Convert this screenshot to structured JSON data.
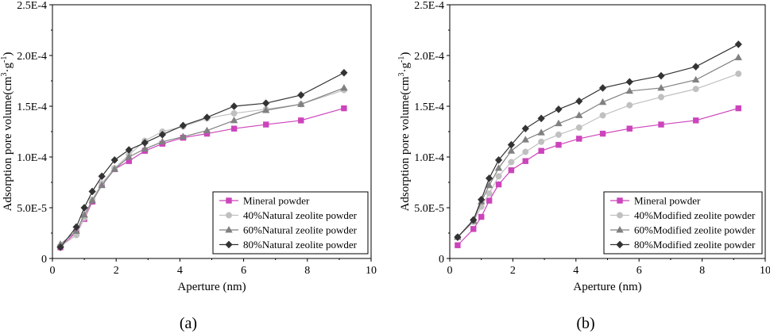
{
  "colors": {
    "mineral": "#cc44bb",
    "zeolite40": "#c0c0c0",
    "zeolite60": "#808080",
    "zeolite80": "#333333",
    "axis": "#000000"
  },
  "chart_data": [
    {
      "type": "line",
      "panel_label": "(a)",
      "xlabel": "Aperture (nm)",
      "ylabel_main": "Adsorption pore volume(cm",
      "ylabel_sup1": "3",
      "ylabel_mid": "·g",
      "ylabel_sup2": "-1",
      "ylabel_end": ")",
      "xlim": [
        0,
        10
      ],
      "ylim": [
        0,
        0.00025
      ],
      "xticks": [
        0,
        2,
        4,
        6,
        8,
        10
      ],
      "xtick_labels": [
        "0",
        "2",
        "4",
        "6",
        "8",
        "10"
      ],
      "yticks": [
        0,
        5e-05,
        0.0001,
        0.00015,
        0.0002,
        0.00025
      ],
      "ytick_labels": [
        "0",
        "5.0E-5",
        "1.0E-4",
        "1.5E-4",
        "2.0E-4",
        "2.5E-4"
      ],
      "legend_position": "bottom-right",
      "series": [
        {
          "name": "Mineral powder",
          "marker": "square",
          "color_key": "mineral",
          "x": [
            0.25,
            0.75,
            1.0,
            1.25,
            1.55,
            1.95,
            2.4,
            2.9,
            3.45,
            4.1,
            4.85,
            5.7,
            6.7,
            7.8,
            9.15
          ],
          "y": [
            1.1e-05,
            2.6e-05,
            3.9e-05,
            5.6e-05,
            7.3e-05,
            8.8e-05,
            9.6e-05,
            0.000106,
            0.000113,
            0.000119,
            0.000123,
            0.000128,
            0.000132,
            0.000136,
            0.000148
          ]
        },
        {
          "name": "40%Natural zeolite powder",
          "marker": "circle",
          "color_key": "zeolite40",
          "x": [
            0.25,
            0.75,
            1.0,
            1.25,
            1.55,
            1.95,
            2.4,
            2.9,
            3.45,
            4.1,
            4.85,
            5.7,
            6.7,
            7.8,
            9.15
          ],
          "y": [
            1.2e-05,
            2.3e-05,
            4e-05,
            5.8e-05,
            7.4e-05,
            8.9e-05,
            0.000102,
            0.000116,
            0.000125,
            0.00013,
            0.000138,
            0.000143,
            0.000147,
            0.000152,
            0.000166
          ]
        },
        {
          "name": "60%Natural zeolite powder",
          "marker": "triangle",
          "color_key": "zeolite60",
          "x": [
            0.25,
            0.75,
            1.0,
            1.25,
            1.55,
            1.95,
            2.4,
            2.9,
            3.45,
            4.1,
            4.85,
            5.7,
            6.7,
            7.8,
            9.15
          ],
          "y": [
            1.4e-05,
            2.7e-05,
            4.3e-05,
            5.7e-05,
            7.2e-05,
            8.8e-05,
            0.0001,
            0.000108,
            0.000115,
            0.00012,
            0.000126,
            0.000136,
            0.000146,
            0.000152,
            0.000168
          ]
        },
        {
          "name": "80%Natural zeolite powder",
          "marker": "diamond",
          "color_key": "zeolite80",
          "x": [
            0.25,
            0.75,
            1.0,
            1.25,
            1.55,
            1.95,
            2.4,
            2.9,
            3.45,
            4.1,
            4.85,
            5.7,
            6.7,
            7.8,
            9.15
          ],
          "y": [
            1.1e-05,
            3.1e-05,
            5e-05,
            6.6e-05,
            8.1e-05,
            9.7e-05,
            0.000107,
            0.000114,
            0.000122,
            0.000131,
            0.000139,
            0.00015,
            0.000153,
            0.000161,
            0.000183
          ]
        }
      ]
    },
    {
      "type": "line",
      "panel_label": "(b)",
      "xlabel": "Aperture (nm)",
      "ylabel_main": "Adsorption pore volume(cm",
      "ylabel_sup1": "3",
      "ylabel_mid": "·g",
      "ylabel_sup2": "-1",
      "ylabel_end": ")",
      "xlim": [
        0,
        10
      ],
      "ylim": [
        0,
        0.00025
      ],
      "xticks": [
        0,
        2,
        4,
        6,
        8,
        10
      ],
      "xtick_labels": [
        "0",
        "2",
        "4",
        "6",
        "8",
        "10"
      ],
      "yticks": [
        0,
        5e-05,
        0.0001,
        0.00015,
        0.0002,
        0.00025
      ],
      "ytick_labels": [
        "0",
        "5.0E-5",
        "1.0E-4",
        "1.5E-4",
        "2.0E-4",
        "2.5E-4"
      ],
      "legend_position": "bottom-right",
      "series": [
        {
          "name": "Mineral powder",
          "marker": "square",
          "color_key": "mineral",
          "x": [
            0.25,
            0.75,
            1.0,
            1.25,
            1.55,
            1.95,
            2.4,
            2.9,
            3.45,
            4.1,
            4.85,
            5.7,
            6.7,
            7.8,
            9.15
          ],
          "y": [
            1.3e-05,
            2.9e-05,
            4.1e-05,
            5.7e-05,
            7.3e-05,
            8.7e-05,
            9.6e-05,
            0.000106,
            0.000112,
            0.000118,
            0.000123,
            0.000128,
            0.000132,
            0.000136,
            0.000148
          ]
        },
        {
          "name": "40%Modified zeolite powder",
          "marker": "circle",
          "color_key": "zeolite40",
          "x": [
            0.25,
            0.75,
            1.0,
            1.25,
            1.55,
            1.95,
            2.4,
            2.9,
            3.45,
            4.1,
            4.85,
            5.7,
            6.7,
            7.8,
            9.15
          ],
          "y": [
            2.1e-05,
            3.6e-05,
            5.1e-05,
            6.4e-05,
            8.1e-05,
            9.5e-05,
            0.000105,
            0.000115,
            0.000122,
            0.000129,
            0.000141,
            0.000151,
            0.000159,
            0.000167,
            0.000182
          ]
        },
        {
          "name": "60%Modified zeolite powder",
          "marker": "triangle",
          "color_key": "zeolite60",
          "x": [
            0.25,
            0.75,
            1.0,
            1.25,
            1.55,
            1.95,
            2.4,
            2.9,
            3.45,
            4.1,
            4.85,
            5.7,
            6.7,
            7.8,
            9.15
          ],
          "y": [
            2.1e-05,
            3.7e-05,
            5.6e-05,
            7.2e-05,
            8.9e-05,
            0.000106,
            0.000117,
            0.000124,
            0.000133,
            0.000141,
            0.000154,
            0.000165,
            0.000168,
            0.000176,
            0.000198
          ]
        },
        {
          "name": "80%Modified zeolite powder",
          "marker": "diamond",
          "color_key": "zeolite80",
          "x": [
            0.25,
            0.75,
            1.0,
            1.25,
            1.55,
            1.95,
            2.4,
            2.9,
            3.45,
            4.1,
            4.85,
            5.7,
            6.7,
            7.8,
            9.15
          ],
          "y": [
            2.1e-05,
            3.8e-05,
            5.8e-05,
            7.9e-05,
            9.7e-05,
            0.000112,
            0.000128,
            0.000138,
            0.000147,
            0.000155,
            0.000168,
            0.000174,
            0.00018,
            0.000189,
            0.000211
          ]
        }
      ]
    }
  ]
}
